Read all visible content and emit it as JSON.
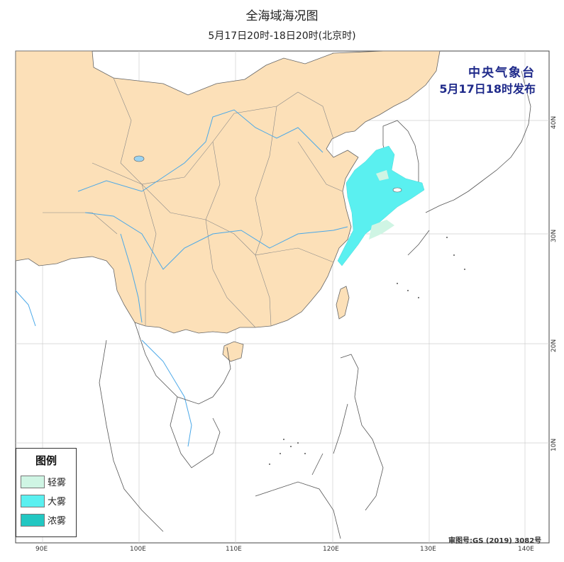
{
  "header": {
    "title": "全海域海况图",
    "subtitle": "5月17日20时-18日20时(北京时)"
  },
  "issuer": {
    "name": "中央气象台",
    "time": "5月17日18时发布"
  },
  "legend": {
    "title": "图例",
    "items": [
      {
        "label": "轻雾",
        "color": "#cff5e4"
      },
      {
        "label": "大雾",
        "color": "#5af0f0"
      },
      {
        "label": "浓雾",
        "color": "#22c7c2"
      }
    ]
  },
  "approval": "审图号:GS (2019) 3082号",
  "axes": {
    "lon_labels": [
      "90E",
      "100E",
      "110E",
      "120E",
      "130E",
      "140E"
    ],
    "lat_labels": [
      "40N",
      "30N",
      "20N",
      "10N"
    ]
  },
  "colors": {
    "land_china": "#fce0b8",
    "ocean": "#ffffff",
    "boundary": "#555555",
    "river": "#4aa8e8",
    "grid": "#cccccc"
  }
}
